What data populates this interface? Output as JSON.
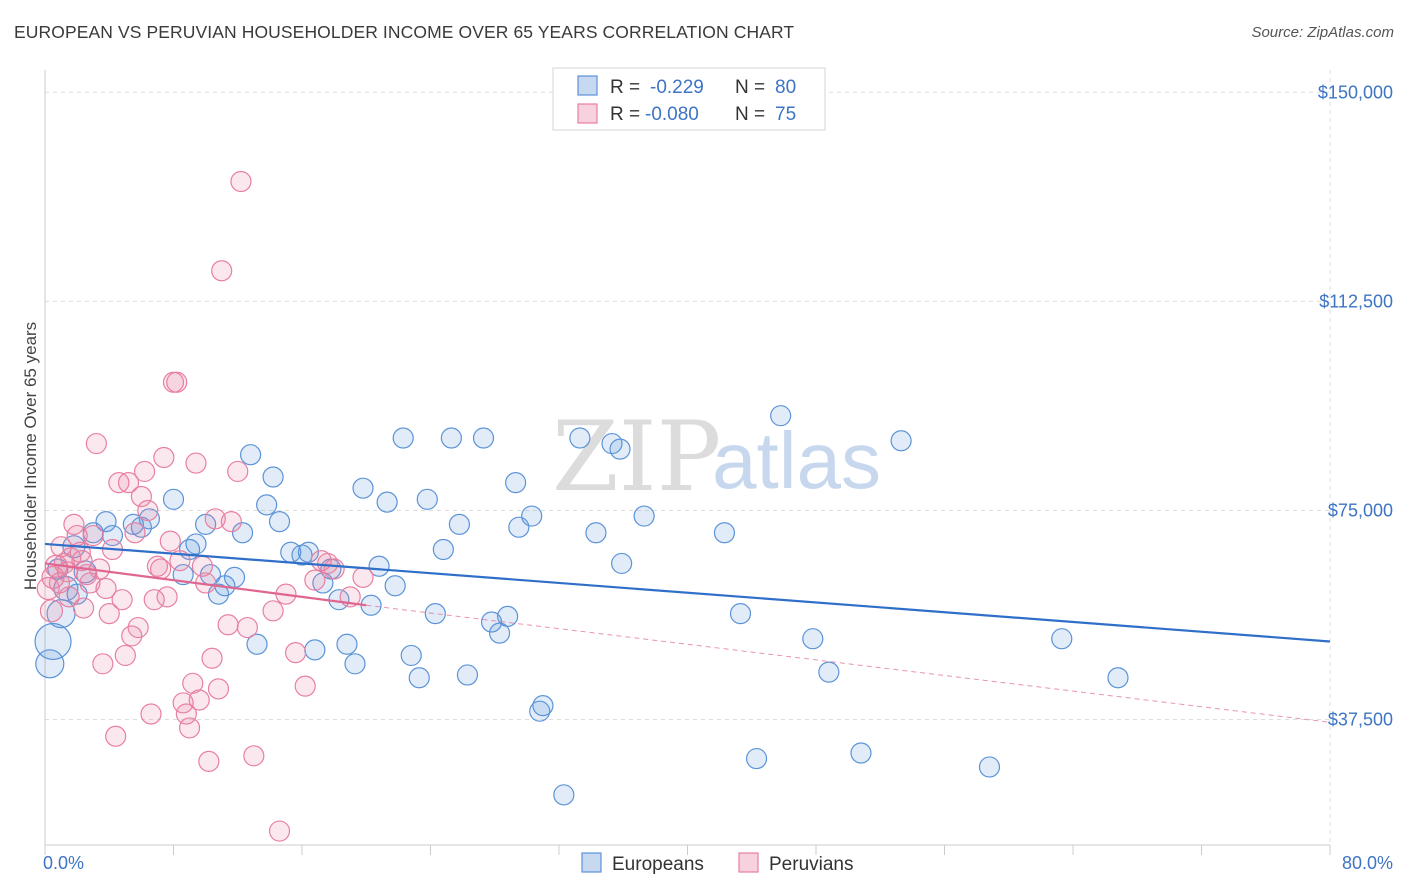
{
  "title": "EUROPEAN VS PERUVIAN HOUSEHOLDER INCOME OVER 65 YEARS CORRELATION CHART",
  "source": "Source: ZipAtlas.com",
  "watermark": {
    "zip": "ZIP",
    "atlas": "atlas"
  },
  "colors": {
    "europeans": "#5b93d8",
    "europeans_fill": "rgba(91,147,216,0.18)",
    "europeans_line": "#2f6fc9",
    "peruvians": "#e87fa1",
    "peruvians_fill": "rgba(232,127,161,0.18)",
    "peruvians_line": "#e06690",
    "axis_text": "#3d74c4",
    "grid": "#dddddd"
  },
  "legend": {
    "rows": [
      {
        "r_label": "R =",
        "r_value": "-0.229",
        "n_label": "N =",
        "n_value": "80"
      },
      {
        "r_label": "R =",
        "r_value": "-0.080",
        "n_label": "N =",
        "n_value": "75"
      }
    ]
  },
  "chart_data": {
    "type": "scatter",
    "xlabel": "",
    "ylabel": "Householder Income Over 65 years",
    "xlim": [
      0,
      80
    ],
    "ylim": [
      15000,
      154000
    ],
    "x_tick_labels": [
      "0.0%",
      "80.0%"
    ],
    "y_ticks": [
      37500,
      75000,
      112500,
      150000
    ],
    "y_tick_labels": [
      "$37,500",
      "$75,000",
      "$112,500",
      "$150,000"
    ],
    "grid": true,
    "legend_position": "bottom-center",
    "series": [
      {
        "name": "Europeans",
        "trend": {
          "x": [
            0,
            80
          ],
          "y": [
            69000,
            51500
          ]
        },
        "points": [
          [
            0.3,
            47500,
            14
          ],
          [
            0.5,
            51500,
            18
          ],
          [
            1.0,
            56500,
            14
          ],
          [
            1.3,
            61000,
            12
          ],
          [
            1.8,
            68500,
            11
          ],
          [
            2.5,
            64000,
            11
          ],
          [
            3.0,
            71000,
            10
          ],
          [
            3.8,
            73000,
            10
          ],
          [
            4.2,
            70500,
            10
          ],
          [
            5.5,
            72500,
            10
          ],
          [
            6.5,
            73500,
            10
          ],
          [
            6.0,
            72000,
            10
          ],
          [
            8.0,
            77000,
            10
          ],
          [
            8.6,
            63500,
            10
          ],
          [
            9.0,
            68000,
            10
          ],
          [
            9.4,
            69000,
            10
          ],
          [
            10.0,
            72500,
            10
          ],
          [
            10.3,
            63500,
            10
          ],
          [
            10.8,
            60000,
            10
          ],
          [
            11.2,
            61500,
            10
          ],
          [
            11.8,
            63000,
            10
          ],
          [
            12.3,
            71000,
            10
          ],
          [
            12.8,
            85000,
            10
          ],
          [
            13.2,
            51000,
            10
          ],
          [
            13.8,
            76000,
            10
          ],
          [
            14.2,
            81000,
            10
          ],
          [
            14.6,
            73000,
            10
          ],
          [
            15.3,
            67500,
            10
          ],
          [
            16.0,
            67000,
            10
          ],
          [
            16.4,
            67500,
            10
          ],
          [
            16.8,
            50000,
            10
          ],
          [
            17.3,
            62000,
            10
          ],
          [
            17.8,
            64500,
            10
          ],
          [
            18.3,
            59000,
            10
          ],
          [
            18.8,
            51000,
            10
          ],
          [
            19.3,
            47500,
            10
          ],
          [
            19.8,
            79000,
            10
          ],
          [
            20.3,
            58000,
            10
          ],
          [
            20.8,
            65000,
            10
          ],
          [
            21.3,
            76500,
            10
          ],
          [
            21.8,
            61500,
            10
          ],
          [
            22.3,
            88000,
            10
          ],
          [
            22.8,
            49000,
            10
          ],
          [
            23.3,
            45000,
            10
          ],
          [
            23.8,
            77000,
            10
          ],
          [
            24.3,
            56500,
            10
          ],
          [
            24.8,
            68000,
            10
          ],
          [
            25.3,
            88000,
            10
          ],
          [
            25.8,
            72500,
            10
          ],
          [
            26.3,
            45500,
            10
          ],
          [
            27.3,
            88000,
            10
          ],
          [
            27.8,
            55000,
            10
          ],
          [
            28.3,
            53000,
            10
          ],
          [
            28.8,
            56000,
            10
          ],
          [
            29.3,
            80000,
            10
          ],
          [
            29.5,
            72000,
            10
          ],
          [
            30.3,
            74000,
            10
          ],
          [
            30.8,
            39000,
            10
          ],
          [
            31.0,
            40000,
            10
          ],
          [
            32.3,
            24000,
            10
          ],
          [
            33.3,
            88000,
            10
          ],
          [
            34.3,
            71000,
            10
          ],
          [
            35.3,
            87000,
            10
          ],
          [
            35.8,
            86000,
            10
          ],
          [
            35.9,
            65500,
            10
          ],
          [
            37.3,
            74000,
            10
          ],
          [
            42.3,
            71000,
            10
          ],
          [
            43.3,
            56500,
            10
          ],
          [
            44.3,
            30500,
            10
          ],
          [
            45.8,
            92000,
            10
          ],
          [
            47.8,
            52000,
            10
          ],
          [
            48.8,
            46000,
            10
          ],
          [
            50.8,
            31500,
            10
          ],
          [
            53.3,
            87500,
            10
          ],
          [
            58.8,
            29000,
            10
          ],
          [
            63.3,
            52000,
            10
          ],
          [
            66.8,
            45000,
            10
          ],
          [
            0.8,
            64500,
            10
          ],
          [
            2.0,
            60000,
            10
          ]
        ]
      },
      {
        "name": "Peruvians",
        "trend": {
          "x": [
            0,
            20
          ],
          "y": [
            65500,
            58000
          ]
        },
        "trend_dashed": {
          "x": [
            20,
            80
          ],
          "y": [
            58000,
            37000
          ]
        },
        "points": [
          [
            0.2,
            61000,
            11
          ],
          [
            0.4,
            57000,
            11
          ],
          [
            0.5,
            63000,
            11
          ],
          [
            0.7,
            65000,
            11
          ],
          [
            0.9,
            62000,
            10
          ],
          [
            1.0,
            68500,
            10
          ],
          [
            1.2,
            65500,
            10
          ],
          [
            1.4,
            64000,
            10
          ],
          [
            1.6,
            66500,
            10
          ],
          [
            1.8,
            72500,
            10
          ],
          [
            2.0,
            70500,
            10
          ],
          [
            2.2,
            67500,
            10
          ],
          [
            2.4,
            57500,
            10
          ],
          [
            2.6,
            63500,
            10
          ],
          [
            2.8,
            62000,
            10
          ],
          [
            3.0,
            70500,
            10
          ],
          [
            3.2,
            87000,
            10
          ],
          [
            3.4,
            64500,
            10
          ],
          [
            3.6,
            47500,
            10
          ],
          [
            3.8,
            61000,
            10
          ],
          [
            4.0,
            56500,
            10
          ],
          [
            4.2,
            68000,
            10
          ],
          [
            4.4,
            34500,
            10
          ],
          [
            4.6,
            80000,
            10
          ],
          [
            4.8,
            59000,
            10
          ],
          [
            5.0,
            49000,
            10
          ],
          [
            5.2,
            80000,
            10
          ],
          [
            5.4,
            52500,
            10
          ],
          [
            5.6,
            71000,
            10
          ],
          [
            5.8,
            54000,
            10
          ],
          [
            6.0,
            77500,
            10
          ],
          [
            6.2,
            82000,
            10
          ],
          [
            6.4,
            75000,
            10
          ],
          [
            6.6,
            38500,
            10
          ],
          [
            6.8,
            59000,
            10
          ],
          [
            7.0,
            65000,
            10
          ],
          [
            7.2,
            64500,
            10
          ],
          [
            7.4,
            84500,
            10
          ],
          [
            7.6,
            59500,
            10
          ],
          [
            7.8,
            69500,
            10
          ],
          [
            8.0,
            98000,
            10
          ],
          [
            8.2,
            98000,
            10
          ],
          [
            8.4,
            66000,
            10
          ],
          [
            8.6,
            40500,
            10
          ],
          [
            8.8,
            38500,
            10
          ],
          [
            9.0,
            36000,
            10
          ],
          [
            9.2,
            44000,
            10
          ],
          [
            9.4,
            83500,
            10
          ],
          [
            9.6,
            41000,
            10
          ],
          [
            9.8,
            65000,
            10
          ],
          [
            10.0,
            62000,
            10
          ],
          [
            10.2,
            30000,
            10
          ],
          [
            10.4,
            48500,
            10
          ],
          [
            10.6,
            73500,
            10
          ],
          [
            10.8,
            43000,
            10
          ],
          [
            11.0,
            118000,
            10
          ],
          [
            11.4,
            54500,
            10
          ],
          [
            11.6,
            73000,
            10
          ],
          [
            12.0,
            82000,
            10
          ],
          [
            12.2,
            134000,
            10
          ],
          [
            12.6,
            54000,
            10
          ],
          [
            13.0,
            31000,
            10
          ],
          [
            14.2,
            57000,
            10
          ],
          [
            14.6,
            17500,
            10
          ],
          [
            15.0,
            60000,
            10
          ],
          [
            15.6,
            49500,
            10
          ],
          [
            16.2,
            43500,
            10
          ],
          [
            16.8,
            62500,
            10
          ],
          [
            17.2,
            66000,
            10
          ],
          [
            17.6,
            65500,
            10
          ],
          [
            18.0,
            64500,
            10
          ],
          [
            19.0,
            59500,
            10
          ],
          [
            19.8,
            63000,
            10
          ],
          [
            1.5,
            59500,
            10
          ],
          [
            2.3,
            66000,
            10
          ]
        ]
      }
    ]
  }
}
